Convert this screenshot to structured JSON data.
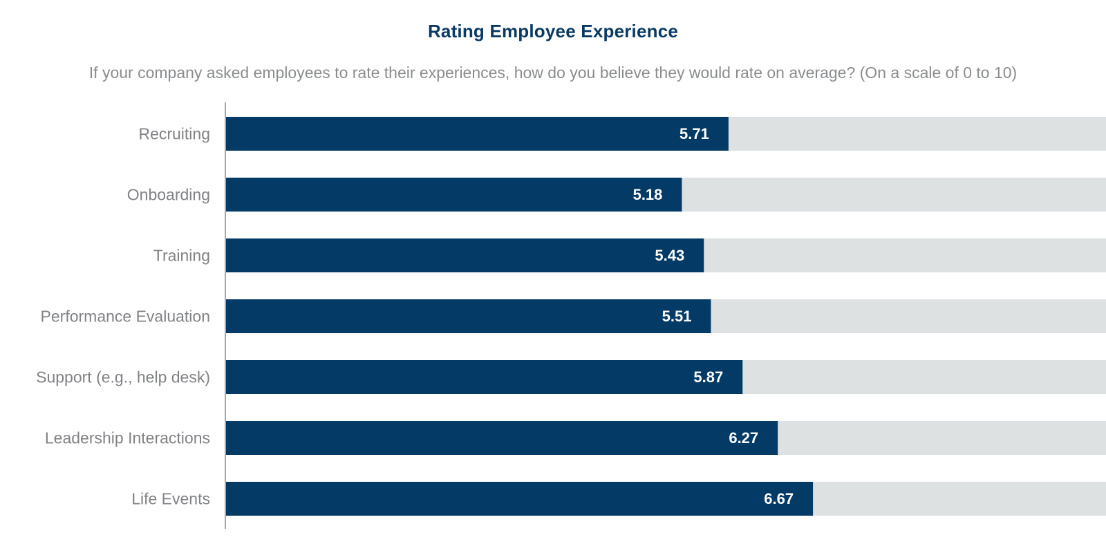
{
  "chart_data": {
    "type": "bar",
    "orientation": "horizontal",
    "title": "Rating Employee Experience",
    "subtitle": "If your company asked employees to rate their experiences, how do you believe they would rate on average? (On a scale of 0 to 10)",
    "categories": [
      "Recruiting",
      "Onboarding",
      "Training",
      "Performance Evaluation",
      "Support (e.g., help desk)",
      "Leadership Interactions",
      "Life Events"
    ],
    "values": [
      5.71,
      5.18,
      5.43,
      5.51,
      5.87,
      6.27,
      6.67
    ],
    "xlim": [
      0,
      10
    ],
    "xlabel": "",
    "ylabel": "",
    "grid": false,
    "colors": {
      "bar": "#033a66",
      "track": "#dde1e1",
      "axis": "#8a8c8e"
    }
  }
}
